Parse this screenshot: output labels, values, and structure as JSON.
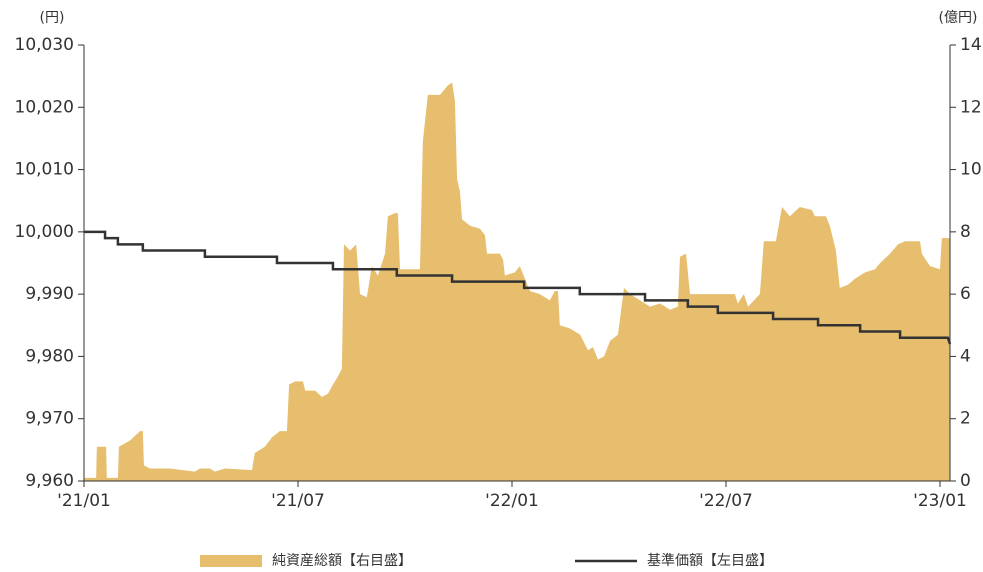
{
  "chart_data": {
    "type": "area-line",
    "y_unit": "(円)",
    "y2_unit": "(億円)",
    "xlim": [
      0,
      24.28
    ],
    "xticks": [
      {
        "value": 0,
        "label": "'21/01"
      },
      {
        "value": 6,
        "label": "'21/07"
      },
      {
        "value": 12,
        "label": "'22/01"
      },
      {
        "value": 18,
        "label": "'22/07"
      },
      {
        "value": 24,
        "label": "'23/01"
      }
    ],
    "ylim": [
      9960,
      10030
    ],
    "yticks": [
      {
        "value": 9960,
        "label": "9,960"
      },
      {
        "value": 9970,
        "label": "9,970"
      },
      {
        "value": 9980,
        "label": "9,980"
      },
      {
        "value": 9990,
        "label": "9,990"
      },
      {
        "value": 10000,
        "label": "10,000"
      },
      {
        "value": 10010,
        "label": "10,010"
      },
      {
        "value": 10020,
        "label": "10,020"
      },
      {
        "value": 10030,
        "label": "10,030"
      }
    ],
    "y2lim": [
      0,
      14
    ],
    "y2ticks": [
      0,
      2,
      4,
      6,
      8,
      10,
      12,
      14
    ],
    "series": [
      {
        "name": "純資産総額【右目盛】",
        "type": "area",
        "axis": "y2",
        "color": "#e6be6e",
        "x": [
          0,
          0.34,
          0.36,
          0.62,
          0.64,
          0.95,
          0.98,
          1.29,
          1.57,
          1.65,
          1.68,
          1.85,
          2.41,
          3.11,
          3.25,
          3.53,
          3.67,
          3.95,
          4.71,
          4.79,
          5.07,
          5.27,
          5.49,
          5.69,
          5.75,
          5.92,
          6.14,
          6.2,
          6.48,
          6.67,
          6.84,
          6.98,
          7.09,
          7.23,
          7.29,
          7.46,
          7.63,
          7.74,
          7.93,
          8.07,
          8.24,
          8.44,
          8.52,
          8.72,
          8.8,
          8.86,
          9.42,
          9.5,
          9.64,
          9.98,
          10.2,
          10.32,
          10.4,
          10.46,
          10.54,
          10.6,
          10.82,
          11.1,
          11.24,
          11.3,
          11.66,
          11.75,
          11.8,
          12.08,
          12.22,
          12.36,
          12.5,
          12.78,
          13.06,
          13.2,
          13.29,
          13.34,
          13.62,
          13.91,
          14.13,
          14.27,
          14.41,
          14.58,
          14.75,
          14.97,
          15.14,
          15.31,
          15.59,
          15.87,
          16.15,
          16.43,
          16.65,
          16.71,
          16.88,
          16.99,
          17.27,
          17.97,
          18.25,
          18.33,
          18.5,
          18.62,
          18.95,
          19.06,
          19.4,
          19.57,
          19.79,
          20.07,
          20.41,
          20.49,
          20.8,
          20.91,
          21.08,
          21.19,
          21.42,
          21.62,
          21.9,
          22.18,
          22.32,
          22.6,
          22.82,
          23.02,
          23.44,
          23.49,
          23.72,
          24.0,
          24.05,
          24.28
        ],
        "values": [
          0.1,
          0.1,
          1.1,
          1.1,
          0.1,
          0.1,
          1.1,
          1.3,
          1.6,
          1.6,
          0.5,
          0.4,
          0.4,
          0.3,
          0.4,
          0.4,
          0.3,
          0.4,
          0.35,
          0.9,
          1.1,
          1.4,
          1.6,
          1.6,
          3.1,
          3.2,
          3.2,
          2.9,
          2.9,
          2.7,
          2.8,
          3.1,
          3.3,
          3.6,
          7.6,
          7.4,
          7.6,
          6.0,
          5.9,
          6.9,
          6.6,
          7.3,
          8.5,
          8.6,
          8.6,
          6.8,
          6.8,
          10.9,
          12.4,
          12.4,
          12.7,
          12.8,
          12.2,
          9.7,
          9.3,
          8.4,
          8.2,
          8.1,
          7.9,
          7.3,
          7.3,
          7.1,
          6.6,
          6.7,
          6.9,
          6.5,
          6.1,
          6.0,
          5.8,
          6.1,
          6.1,
          5.0,
          4.9,
          4.7,
          4.2,
          4.3,
          3.9,
          4.0,
          4.5,
          4.7,
          6.2,
          6.0,
          5.8,
          5.6,
          5.7,
          5.5,
          5.6,
          7.2,
          7.3,
          6.0,
          6.0,
          6.0,
          6.0,
          5.7,
          6.0,
          5.6,
          6.0,
          7.7,
          7.7,
          8.8,
          8.5,
          8.8,
          8.7,
          8.5,
          8.5,
          8.2,
          7.4,
          6.2,
          6.3,
          6.5,
          6.7,
          6.8,
          7.0,
          7.3,
          7.6,
          7.7,
          7.7,
          7.3,
          6.9,
          6.8,
          7.8,
          7.8
        ]
      },
      {
        "name": "基準価額【左目盛】",
        "type": "line",
        "axis": "y",
        "color": "#333333",
        "x": [
          0,
          0.59,
          0.59,
          0.95,
          0.95,
          1.65,
          1.65,
          3.39,
          3.39,
          5.41,
          5.41,
          6.98,
          6.98,
          8.77,
          8.77,
          10.32,
          10.32,
          12.34,
          12.34,
          13.9,
          13.9,
          15.73,
          15.73,
          16.93,
          16.93,
          17.77,
          17.77,
          19.32,
          19.32,
          20.58,
          20.58,
          21.76,
          21.76,
          22.88,
          22.88,
          24.22,
          24.28
        ],
        "values": [
          10000,
          10000,
          9999,
          9999,
          9998,
          9998,
          9997,
          9997,
          9996,
          9996,
          9995,
          9995,
          9994,
          9994,
          9993,
          9993,
          9992,
          9992,
          9991,
          9991,
          9990,
          9990,
          9989,
          9989,
          9988,
          9988,
          9987,
          9987,
          9986,
          9986,
          9985,
          9985,
          9984,
          9984,
          9983,
          9983,
          9982
        ]
      }
    ]
  }
}
